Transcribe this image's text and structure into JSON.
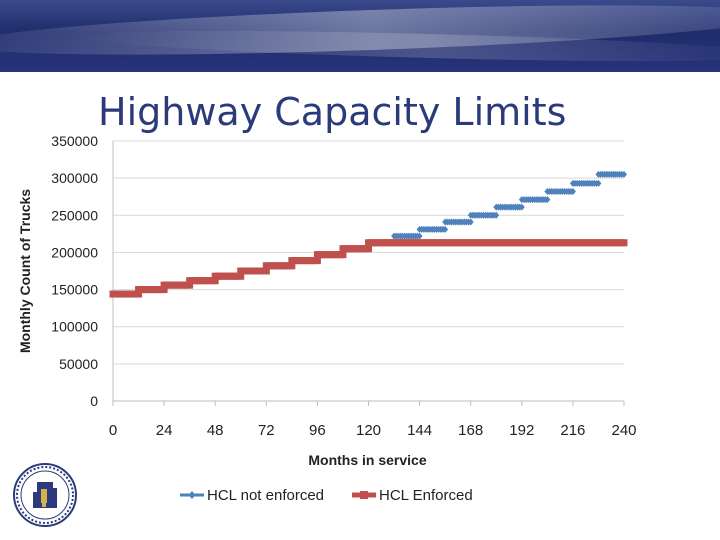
{
  "slide": {
    "title": "Highway Capacity Limits"
  },
  "chart_data": {
    "type": "line",
    "xlabel": "Months in service",
    "ylabel": "Monthly Count of Trucks",
    "xlim": [
      0,
      240
    ],
    "ylim": [
      0,
      350000
    ],
    "x_ticks": [
      0,
      24,
      48,
      72,
      96,
      120,
      144,
      168,
      192,
      216,
      240
    ],
    "y_ticks": [
      0,
      50000,
      100000,
      150000,
      200000,
      250000,
      300000,
      350000
    ],
    "grid": "horizontal",
    "legend_position": "bottom",
    "series": [
      {
        "name": "HCL not enforced",
        "color": "#4f81bd",
        "marker": "diamond",
        "steps": [
          {
            "x0": 132,
            "x1": 144,
            "y": 222000
          },
          {
            "x0": 144,
            "x1": 156,
            "y": 231000
          },
          {
            "x0": 156,
            "x1": 168,
            "y": 241000
          },
          {
            "x0": 168,
            "x1": 180,
            "y": 250000
          },
          {
            "x0": 180,
            "x1": 192,
            "y": 261000
          },
          {
            "x0": 192,
            "x1": 204,
            "y": 271000
          },
          {
            "x0": 204,
            "x1": 216,
            "y": 282000
          },
          {
            "x0": 216,
            "x1": 228,
            "y": 293000
          },
          {
            "x0": 228,
            "x1": 240,
            "y": 305000
          }
        ]
      },
      {
        "name": "HCL Enforced",
        "color": "#c0504d",
        "marker": "square",
        "steps": [
          {
            "x0": 0,
            "x1": 12,
            "y": 144000
          },
          {
            "x0": 12,
            "x1": 24,
            "y": 150000
          },
          {
            "x0": 24,
            "x1": 36,
            "y": 156000
          },
          {
            "x0": 36,
            "x1": 48,
            "y": 162000
          },
          {
            "x0": 48,
            "x1": 60,
            "y": 168000
          },
          {
            "x0": 60,
            "x1": 72,
            "y": 175000
          },
          {
            "x0": 72,
            "x1": 84,
            "y": 182000
          },
          {
            "x0": 84,
            "x1": 96,
            "y": 189000
          },
          {
            "x0": 96,
            "x1": 108,
            "y": 197000
          },
          {
            "x0": 108,
            "x1": 120,
            "y": 205000
          },
          {
            "x0": 120,
            "x1": 240,
            "y": 213000
          }
        ]
      }
    ]
  }
}
